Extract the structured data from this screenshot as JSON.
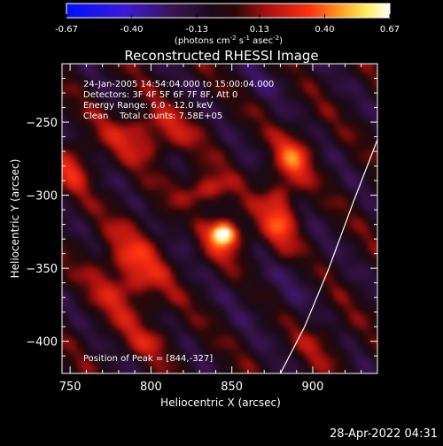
{
  "colorbar": {
    "ticks": [
      "-0.67",
      "-0.40",
      "-0.13",
      "0.13",
      "0.40",
      "0.67"
    ],
    "tick_values": [
      -0.67,
      -0.4,
      -0.13,
      0.13,
      0.4,
      0.67
    ],
    "range": [
      -0.67,
      0.67
    ],
    "unit_main": "(photons cm",
    "unit_sup1": "-2",
    "unit_mid": " s",
    "unit_sup2": "-1",
    "unit_mid2": " asec",
    "unit_sup3": "-2",
    "unit_end": ")",
    "colormap": "purple-black-red-yellow-white"
  },
  "chart_data": {
    "type": "heatmap",
    "title": "Reconstructed RHESSI Image",
    "xlabel": "Heliocentric X (arcsec)",
    "ylabel": "Heliocentric Y (arcsec)",
    "xlim": [
      745,
      940
    ],
    "ylim": [
      -422,
      -210
    ],
    "xticks": [
      750,
      800,
      850,
      900
    ],
    "xtick_labels": [
      "750",
      "800",
      "850",
      "900"
    ],
    "yticks": [
      -250,
      -300,
      -350,
      -400
    ],
    "ytick_labels": [
      "−250",
      "−300",
      "−350",
      "−400"
    ],
    "info_lines": [
      "24-Jan-2005 14:54:04.000 to 15:00:04.000",
      "Detectors: 3F 4F 5F 6F 7F 8F, Att 0",
      "Energy Range: 6.0 - 12.0 keV",
      "Clean    Total counts: 7.58E+05"
    ],
    "peak_label": "Position of Peak = [844,-327]",
    "peak": [
      844,
      -327
    ],
    "limb_points": [
      [
        880,
        -422
      ],
      [
        895,
        -390
      ],
      [
        910,
        -350
      ],
      [
        925,
        -305
      ],
      [
        940,
        -262
      ]
    ],
    "components": [
      {
        "x": 845,
        "y": -326,
        "sx": 5,
        "sy": 5,
        "amp": 0.7
      },
      {
        "x": 847,
        "y": -330,
        "sx": 13,
        "sy": 13,
        "amp": 0.22
      },
      {
        "x": 832,
        "y": -296,
        "sx": 10,
        "sy": 8,
        "amp": 0.35
      },
      {
        "x": 880,
        "y": -312,
        "sx": 8,
        "sy": 22,
        "amp": 0.34
      },
      {
        "x": 889,
        "y": -273,
        "sx": 8,
        "sy": 11,
        "amp": 0.3
      },
      {
        "x": 798,
        "y": -258,
        "sx": 18,
        "sy": 12,
        "amp": 0.3
      },
      {
        "x": 787,
        "y": -354,
        "sx": 15,
        "sy": 22,
        "amp": 0.33
      },
      {
        "x": 752,
        "y": -280,
        "sx": 8,
        "sy": 12,
        "amp": 0.25
      },
      {
        "x": 822,
        "y": -322,
        "sx": 6,
        "sy": 14,
        "amp": -0.12
      },
      {
        "x": 875,
        "y": -360,
        "sx": 18,
        "sy": 20,
        "amp": -0.1
      },
      {
        "x": 800,
        "y": -400,
        "sx": 12,
        "sy": 8,
        "amp": 0.15
      },
      {
        "x": 905,
        "y": -400,
        "sx": 12,
        "sy": 12,
        "amp": 0.12
      },
      {
        "x": 870,
        "y": -222,
        "sx": 15,
        "sy": 8,
        "amp": -0.08
      }
    ],
    "stripe_amplitude": 0.14,
    "stripe_wavelength_arcsec": 38,
    "stripe_angle_deg": 40
  },
  "footer": {
    "timestamp": "28-Apr-2022 04:31"
  }
}
